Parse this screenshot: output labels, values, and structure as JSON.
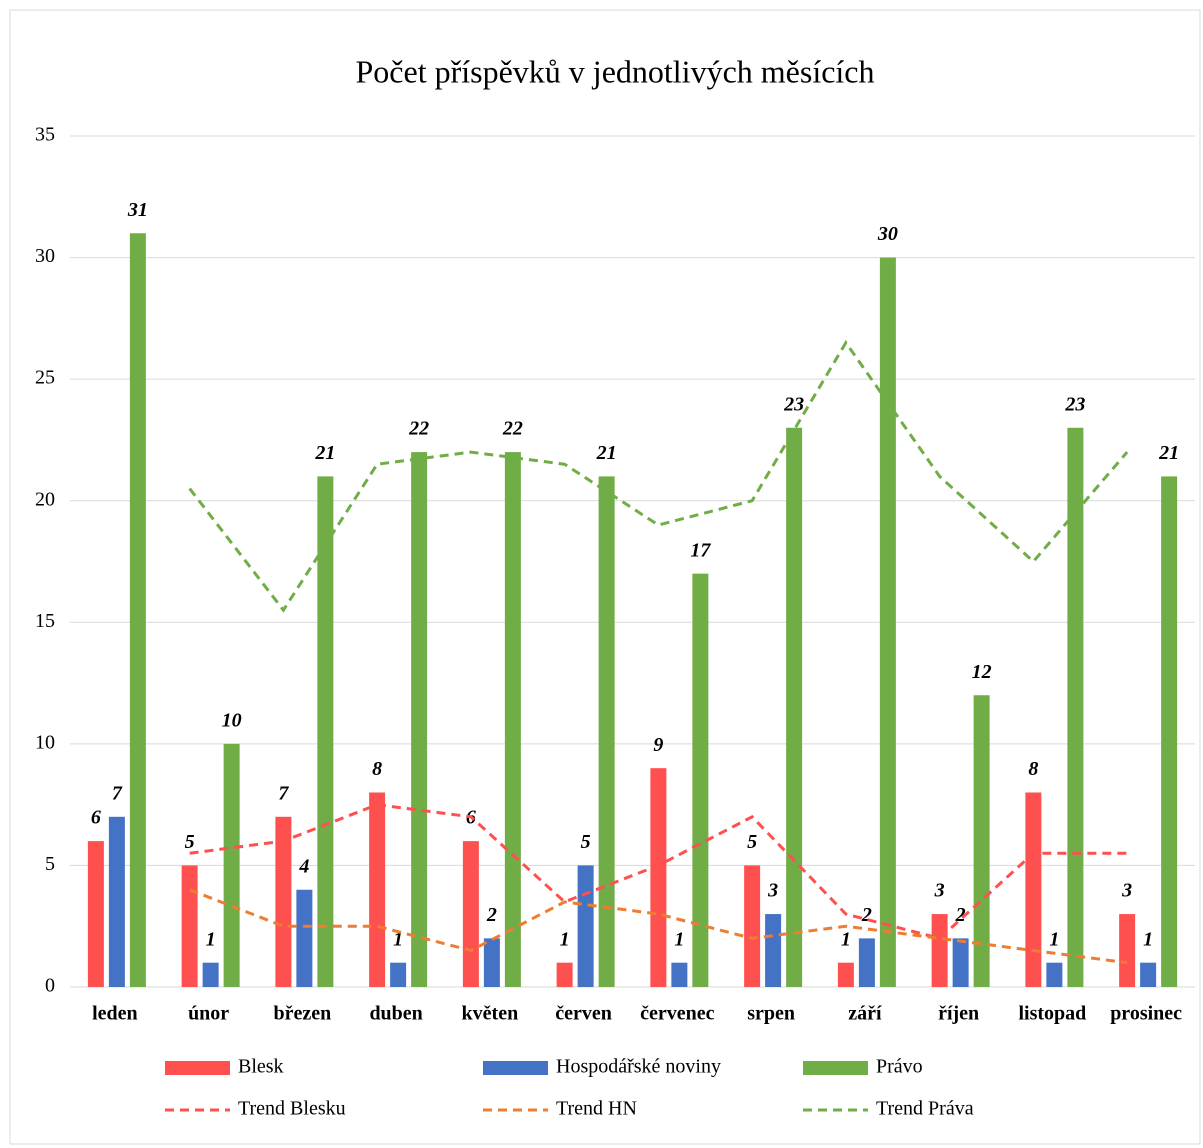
{
  "chart_data": {
    "type": "bar",
    "title": "Počet příspěvků v jednotlivých měsících",
    "categories": [
      "leden",
      "únor",
      "březen",
      "duben",
      "květen",
      "červen",
      "červenec",
      "srpen",
      "září",
      "říjen",
      "listopad",
      "prosinec"
    ],
    "series": [
      {
        "name": "Blesk",
        "kind": "bar",
        "color": "#ff5050",
        "values": [
          6,
          5,
          7,
          8,
          6,
          1,
          9,
          5,
          1,
          3,
          8,
          3
        ]
      },
      {
        "name": "Hospodářské noviny",
        "kind": "bar",
        "color": "#4472c4",
        "values": [
          7,
          1,
          4,
          1,
          2,
          5,
          1,
          3,
          2,
          2,
          1,
          1
        ]
      },
      {
        "name": "Právo",
        "kind": "bar",
        "color": "#70ad47",
        "values": [
          31,
          10,
          21,
          22,
          22,
          21,
          17,
          23,
          30,
          12,
          23,
          21
        ]
      },
      {
        "name": "Trend Blesku",
        "kind": "line",
        "color": "#ff5050",
        "values": [
          null,
          5.5,
          6,
          7.5,
          7,
          3.5,
          5,
          7,
          3,
          2,
          5.5,
          5.5
        ]
      },
      {
        "name": "Trend HN",
        "kind": "line",
        "color": "#ed7d31",
        "values": [
          null,
          4,
          2.5,
          2.5,
          1.5,
          3.5,
          3,
          2,
          2.5,
          2,
          1.5,
          1
        ]
      },
      {
        "name": "Trend Práva",
        "kind": "line",
        "color": "#70ad47",
        "values": [
          null,
          20.5,
          15.5,
          21.5,
          22,
          21.5,
          19,
          20,
          26.5,
          21,
          17.5,
          22
        ]
      }
    ],
    "ylim": [
      0,
      35
    ],
    "yticks": [
      0,
      5,
      10,
      15,
      20,
      25,
      30,
      35
    ],
    "grid": true,
    "legend": "bottom"
  }
}
